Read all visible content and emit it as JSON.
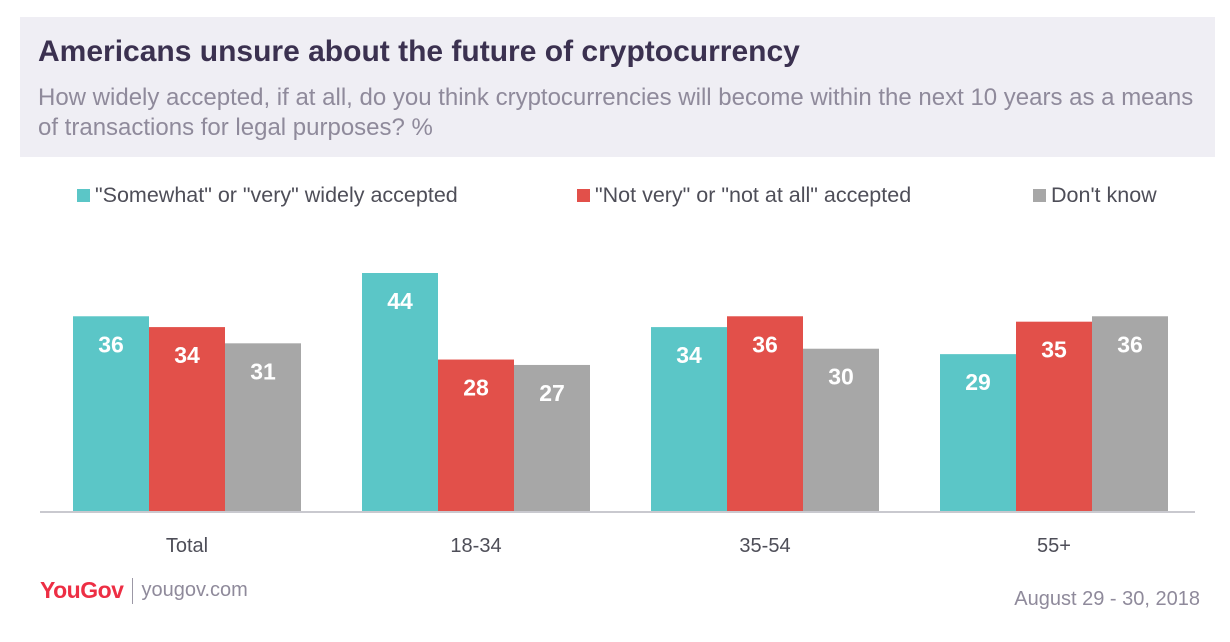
{
  "header": {
    "title": "Americans unsure about the future of cryptocurrency",
    "subtitle": "How widely accepted, if at all, do you think cryptocurrencies will become within the next 10 years as a means of transactions for legal purposes? %"
  },
  "legend": {
    "items": [
      {
        "label": "\"Somewhat\" or \"very\" widely accepted",
        "color": "#5bc6c7"
      },
      {
        "label": "\"Not very\" or \"not at all\" accepted",
        "color": "#e2504a"
      },
      {
        "label": "Don't know",
        "color": "#a7a7a7"
      }
    ]
  },
  "chart_data": {
    "type": "bar",
    "title": "Americans unsure about the future of cryptocurrency",
    "subtitle": "How widely accepted, if at all, do you think cryptocurrencies will become within the next 10 years as a means of transactions for legal purposes? %",
    "categories": [
      "Total",
      "18-34",
      "35-54",
      "55+"
    ],
    "series": [
      {
        "name": "\"Somewhat\" or \"very\" widely accepted",
        "color": "#5bc6c7",
        "values": [
          36,
          44,
          34,
          29
        ]
      },
      {
        "name": "\"Not very\" or \"not at all\" accepted",
        "color": "#e2504a",
        "values": [
          34,
          28,
          36,
          35
        ]
      },
      {
        "name": "Don't know",
        "color": "#a7a7a7",
        "values": [
          31,
          27,
          30,
          36
        ]
      }
    ],
    "ylim": [
      0,
      44
    ],
    "grid": false,
    "data_labels": true,
    "legend_position": "top"
  },
  "footer": {
    "brand_you": "You",
    "brand_gov": "Gov",
    "site": "yougov.com",
    "date": "August 29 - 30, 2018"
  }
}
